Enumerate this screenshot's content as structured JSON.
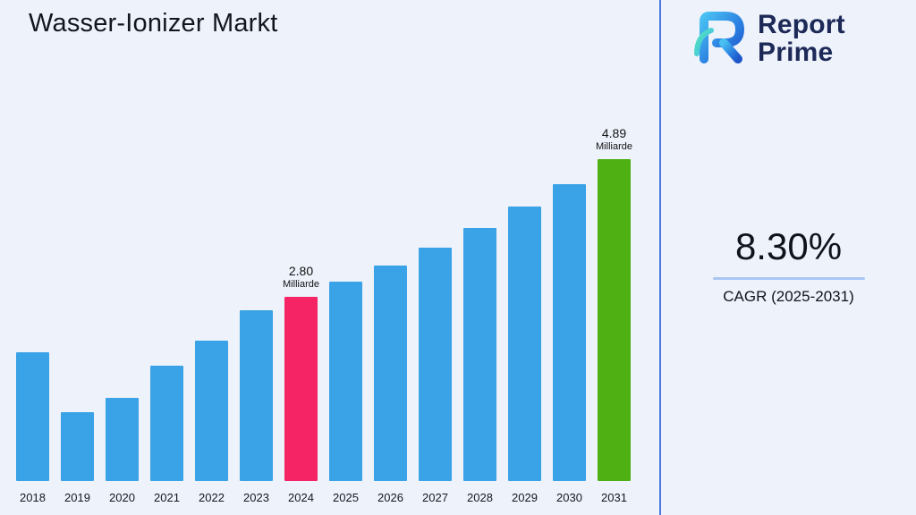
{
  "header": {
    "title": "Wasser-Ionizer Markt"
  },
  "logo": {
    "line1": "Report",
    "line2": "Prime"
  },
  "stats": {
    "cagr_value": "8.30%",
    "cagr_label": "CAGR (2025-2031)"
  },
  "chart_data": {
    "type": "bar",
    "title": "Wasser-Ionizer Markt",
    "unit": "Milliarde",
    "categories": [
      "2018",
      "2019",
      "2020",
      "2021",
      "2022",
      "2023",
      "2024",
      "2025",
      "2026",
      "2027",
      "2028",
      "2029",
      "2030",
      "2031"
    ],
    "values": [
      1.95,
      1.05,
      1.26,
      1.75,
      2.13,
      2.59,
      2.8,
      3.03,
      3.28,
      3.55,
      3.85,
      4.17,
      4.51,
      4.89
    ],
    "ylim": [
      0,
      5
    ],
    "grid": false,
    "legend": "none",
    "bar_color": "#3aa2e6",
    "highlight_bars": [
      {
        "category": "2024",
        "value_label": "2.80",
        "unit_label": "Milliarde",
        "color": "#f52465"
      },
      {
        "category": "2031",
        "value_label": "4.89",
        "unit_label": "Milliarde",
        "color": "#4fb013"
      }
    ],
    "colors": {
      "accent_blue": "#3aa2e6",
      "highlight_pink": "#f52465",
      "highlight_green": "#4fb013"
    }
  }
}
